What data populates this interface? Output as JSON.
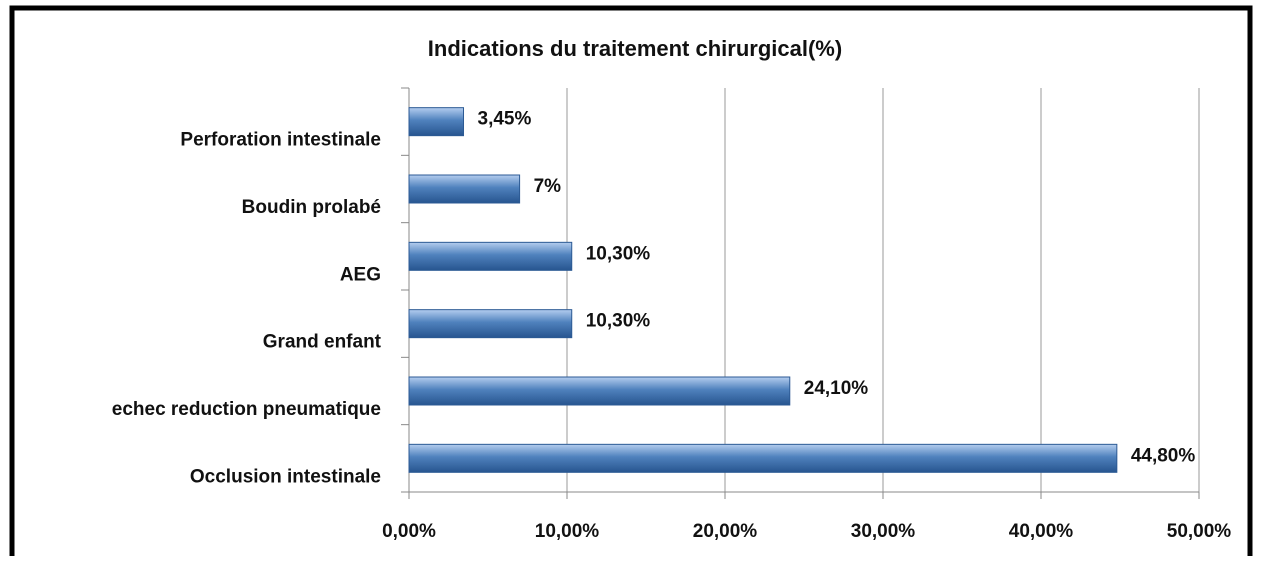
{
  "chart_data": {
    "type": "barh",
    "title": "Indications du traitement chirurgical(%)",
    "categories": [
      "Perforation intestinale",
      "Boudin prolabé",
      "AEG",
      "Grand enfant",
      "echec reduction pneumatique",
      "Occlusion intestinale"
    ],
    "values": [
      3.45,
      7,
      10.3,
      10.3,
      24.1,
      44.8
    ],
    "value_labels": [
      "3,45%",
      "7%",
      "10,30%",
      "10,30%",
      "24,10%",
      "44,80%"
    ],
    "color": "#4f81bd",
    "xlim": [
      0,
      50
    ],
    "xticks": [
      {
        "value": 0,
        "label": "0,00%"
      },
      {
        "value": 10,
        "label": "10,00%"
      },
      {
        "value": 20,
        "label": "20,00%"
      },
      {
        "value": 30,
        "label": "30,00%"
      },
      {
        "value": 40,
        "label": "40,00%"
      },
      {
        "value": 50,
        "label": "50,00%"
      }
    ],
    "grid": true
  }
}
